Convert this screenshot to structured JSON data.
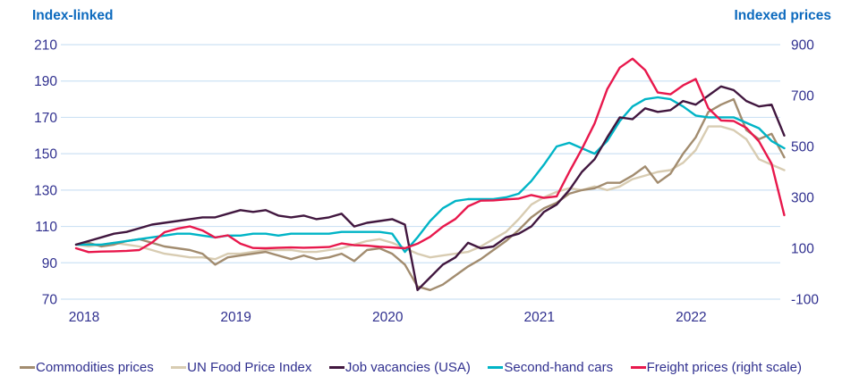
{
  "header": {
    "left_axis_title": "Index-linked",
    "right_axis_title": "Indexed prices"
  },
  "colors": {
    "axis_title_text": "#0d6abe",
    "axis_tick_text": "#30308f",
    "legend_text": "#30308f",
    "gridline": "#cde2f4",
    "background": "#ffffff"
  },
  "chart_data": {
    "type": "line",
    "title": "",
    "x_unit": "month",
    "x_start": "2018-01",
    "x_end": "2022-09",
    "x_tick_labels": [
      "2018",
      "2019",
      "2020",
      "2021",
      "2022"
    ],
    "grid": "horizontal",
    "legend_position": "bottom",
    "left_axis": {
      "title": "Index-linked",
      "min": 70,
      "max": 210,
      "ticks": [
        210,
        190,
        170,
        150,
        130,
        110,
        90,
        70
      ]
    },
    "right_axis": {
      "title": "Indexed prices",
      "min": -100,
      "max": 900,
      "ticks": [
        900,
        700,
        500,
        300,
        100,
        -100
      ]
    },
    "series": [
      {
        "name": "UN Food Price Index",
        "color": "#d8ccb2",
        "axis": "left",
        "values": [
          100,
          99,
          100,
          101,
          100,
          99,
          97,
          95,
          94,
          93,
          93,
          92,
          95,
          95,
          96,
          97,
          97,
          97,
          96,
          96,
          97,
          98,
          100,
          102,
          103,
          101,
          98,
          95,
          93,
          94,
          95,
          96,
          99,
          103,
          107,
          114,
          122,
          126,
          129,
          131,
          130,
          132,
          130,
          132,
          136,
          138,
          140,
          141,
          145,
          152,
          165,
          165,
          163,
          158,
          147,
          144,
          141
        ]
      },
      {
        "name": "Commodities prices",
        "color": "#a28c6f",
        "axis": "left",
        "values": [
          100,
          101,
          99,
          100,
          102,
          103,
          101,
          99,
          98,
          97,
          95,
          89,
          93,
          94,
          95,
          96,
          94,
          92,
          94,
          92,
          93,
          95,
          91,
          97,
          98,
          95,
          89,
          77,
          75,
          78,
          83,
          88,
          92,
          97,
          102,
          108,
          115,
          120,
          123,
          128,
          130,
          131,
          134,
          134,
          138,
          143,
          134,
          139,
          150,
          159,
          173,
          177,
          180,
          163,
          158,
          161,
          148
        ]
      },
      {
        "name": "Second-hand cars",
        "color": "#00b4c6",
        "axis": "left",
        "values": [
          100,
          100,
          100,
          101,
          102,
          103,
          104,
          105,
          106,
          106,
          105,
          104,
          105,
          105,
          106,
          106,
          105,
          106,
          106,
          106,
          106,
          107,
          107,
          107,
          107,
          106,
          96,
          104,
          113,
          120,
          124,
          125,
          125,
          125,
          126,
          128,
          135,
          144,
          154,
          156,
          153,
          150,
          157,
          168,
          176,
          180,
          181,
          180,
          176,
          171,
          170,
          170,
          170,
          167,
          164,
          157,
          153
        ]
      },
      {
        "name": "Job vacancies (USA)",
        "color": "#41173f",
        "axis": "left",
        "values": [
          100,
          102,
          104,
          106,
          107,
          109,
          111,
          112,
          113,
          114,
          115,
          115,
          117,
          119,
          118,
          119,
          116,
          115,
          116,
          114,
          115,
          117,
          110,
          112,
          113,
          114,
          111,
          75,
          82,
          89,
          93,
          101,
          98,
          99,
          104,
          106,
          110,
          118,
          122,
          130,
          140,
          147,
          159,
          170,
          169,
          175,
          173,
          174,
          179,
          177,
          182,
          187,
          185,
          179,
          176,
          177,
          160
        ]
      },
      {
        "name": "Freight prices (right scale)",
        "color": "#e8184c",
        "axis": "right",
        "values": [
          100,
          85,
          87,
          88,
          90,
          93,
          122,
          163,
          177,
          186,
          170,
          142,
          151,
          118,
          101,
          100,
          102,
          103,
          102,
          103,
          105,
          119,
          112,
          110,
          106,
          103,
          100,
          118,
          145,
          185,
          215,
          265,
          287,
          288,
          292,
          295,
          309,
          298,
          304,
          400,
          490,
          590,
          725,
          810,
          845,
          800,
          712,
          705,
          740,
          765,
          650,
          602,
          600,
          573,
          520,
          432,
          230
        ]
      }
    ]
  }
}
